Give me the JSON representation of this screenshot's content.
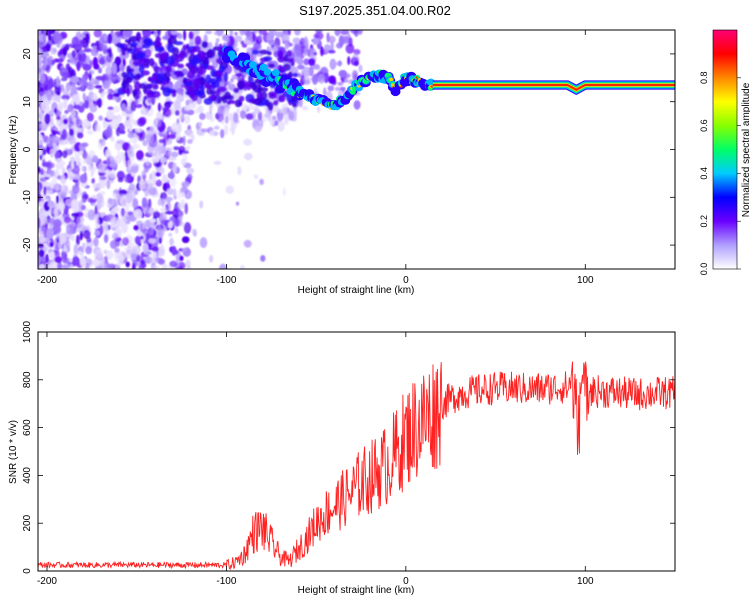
{
  "figure": {
    "title": "S197.2025.351.04.00.R02"
  },
  "chart_data": [
    {
      "type": "heatmap",
      "title": "S197.2025.351.04.00.R02",
      "xlabel": "Height of straight line (km)",
      "ylabel": "Frequency (Hz)",
      "xlim": [
        -205,
        150
      ],
      "ylim": [
        -25,
        25
      ],
      "xticks": [
        -200,
        -100,
        0,
        100
      ],
      "yticks": [
        -20,
        -10,
        0,
        10,
        20
      ],
      "ridge": {
        "x": [
          -100,
          -90,
          -80,
          -70,
          -60,
          -50,
          -45,
          -40,
          -35,
          -30,
          -25,
          -20,
          -15,
          -10,
          -5,
          0,
          5,
          10,
          15,
          20,
          40,
          60,
          80,
          90,
          95,
          100,
          120,
          140,
          150
        ],
        "freq": [
          19.5,
          18,
          16,
          14,
          12,
          10.5,
          9.5,
          9,
          10.5,
          12.5,
          14,
          15,
          15.5,
          15,
          12.5,
          15,
          14.5,
          14,
          13.5,
          13.5,
          13.5,
          13.5,
          13.5,
          13.5,
          12.5,
          13.5,
          13.5,
          13.5,
          13.5
        ]
      },
      "colorbar": {
        "label": "Normalized spectral amplitude",
        "range": [
          0,
          1
        ],
        "ticks": [
          "0.0",
          "0.2",
          "0.4",
          "0.6",
          "0.8"
        ],
        "colors": [
          "#ffffff",
          "#b0a0ff",
          "#6a00ff",
          "#0000ff",
          "#00ccff",
          "#00ff66",
          "#88ff00",
          "#ffff00",
          "#ff8800",
          "#ff0000",
          "#ff0077"
        ]
      }
    },
    {
      "type": "line",
      "xlabel": "Height of straight line (km)",
      "ylabel": "SNR (10 * v/v)",
      "xlim": [
        -205,
        150
      ],
      "ylim": [
        0,
        1000
      ],
      "xticks": [
        -200,
        -100,
        0,
        100
      ],
      "yticks": [
        0,
        200,
        400,
        600,
        800,
        1000
      ],
      "series": [
        {
          "name": "SNR",
          "color": "#ff2020",
          "x": [
            -205,
            -150,
            -100,
            -95,
            -90,
            -85,
            -80,
            -75,
            -70,
            -65,
            -60,
            -55,
            -50,
            -45,
            -40,
            -35,
            -30,
            -25,
            -20,
            -15,
            -10,
            -5,
            0,
            5,
            10,
            15,
            20,
            25,
            30,
            40,
            50,
            60,
            70,
            80,
            90,
            95,
            100,
            110,
            120,
            130,
            140,
            150
          ],
          "values": [
            25,
            25,
            25,
            35,
            70,
            160,
            180,
            120,
            60,
            40,
            90,
            140,
            200,
            240,
            270,
            300,
            330,
            370,
            390,
            420,
            450,
            500,
            560,
            600,
            630,
            660,
            700,
            720,
            740,
            755,
            765,
            765,
            760,
            765,
            770,
            760,
            755,
            750,
            745,
            740,
            745,
            745
          ]
        }
      ]
    }
  ]
}
